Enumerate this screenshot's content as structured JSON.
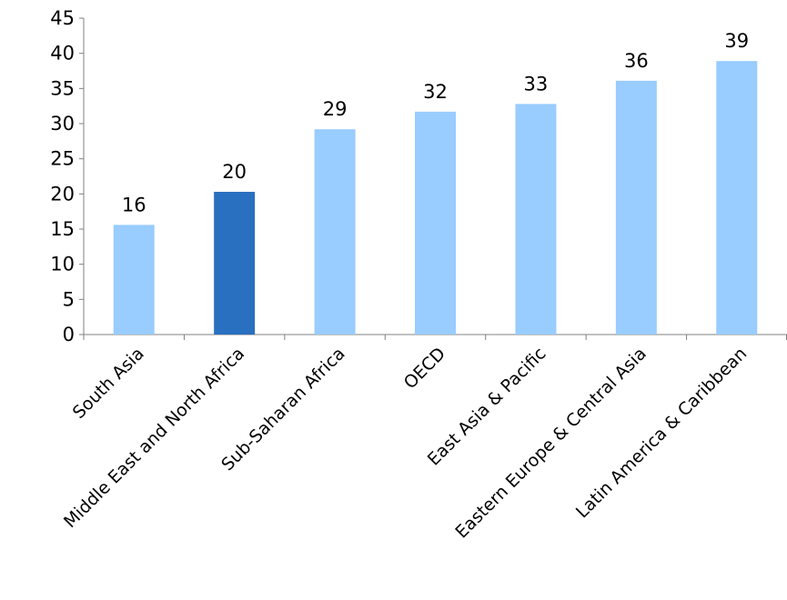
{
  "chart_data": {
    "type": "bar",
    "categories": [
      "South Asia",
      "Middle East and North Africa",
      "Sub-Saharan Africa",
      "OECD",
      "East Asia & Pacific",
      "Eastern Europe & Central Asia",
      "Latin America & Caribbean"
    ],
    "values": [
      15.6,
      20.3,
      29.2,
      31.7,
      32.8,
      36.1,
      38.9
    ],
    "data_labels": [
      "16",
      "20",
      "29",
      "32",
      "33",
      "36",
      "39"
    ],
    "highlighted_category": "Middle East and North Africa",
    "ylim": [
      0,
      45
    ],
    "yticks": [
      0,
      5,
      10,
      15,
      20,
      25,
      30,
      35,
      40,
      45
    ],
    "grid": false,
    "legend": "none",
    "colors": {
      "bar": "#99ccff",
      "bar_highlight": "#2a70c0",
      "axis": "#808080"
    }
  }
}
